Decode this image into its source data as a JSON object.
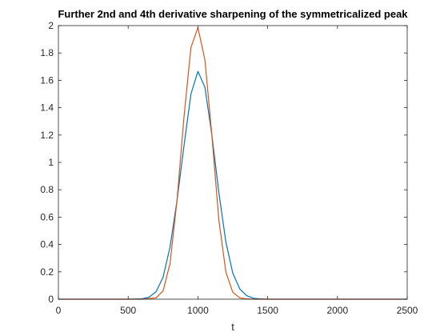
{
  "chart_data": {
    "type": "line",
    "title": "Further 2nd and 4th derivative sharpening of the symmetricalized peak",
    "xlabel": "t",
    "ylabel": "",
    "xlim": [
      0,
      2500
    ],
    "ylim": [
      0,
      2
    ],
    "xticks": [
      0,
      500,
      1000,
      1500,
      2000,
      2500
    ],
    "yticks": [
      0,
      0.2,
      0.4,
      0.6,
      0.8,
      1,
      1.2,
      1.4,
      1.6,
      1.8,
      2
    ],
    "xtick_labels": [
      "0",
      "500",
      "1000",
      "1500",
      "2000",
      "2500"
    ],
    "ytick_labels": [
      "0",
      "0.2",
      "0.4",
      "0.6",
      "0.8",
      "1",
      "1.2",
      "1.4",
      "1.6",
      "1.8",
      "2"
    ],
    "grid": false,
    "series": [
      {
        "color": "#0072BD",
        "x": [
          0,
          500,
          600,
          650,
          700,
          750,
          800,
          850,
          900,
          950,
          1000,
          1050,
          1100,
          1150,
          1200,
          1250,
          1300,
          1350,
          1400,
          1450,
          1500,
          2000,
          2500
        ],
        "y": [
          0,
          0,
          0.003,
          0.015,
          0.055,
          0.16,
          0.38,
          0.72,
          1.12,
          1.5,
          1.665,
          1.55,
          1.2,
          0.78,
          0.42,
          0.19,
          0.075,
          0.025,
          0.007,
          0.002,
          0,
          0,
          0
        ]
      },
      {
        "color": "#D95319",
        "x": [
          0,
          600,
          700,
          750,
          800,
          850,
          900,
          950,
          1000,
          1050,
          1100,
          1150,
          1200,
          1250,
          1300,
          1350,
          1400,
          1500,
          2000,
          2500
        ],
        "y": [
          0,
          0,
          0.01,
          0.06,
          0.26,
          0.72,
          1.33,
          1.84,
          1.985,
          1.75,
          1.2,
          0.58,
          0.2,
          0.05,
          0.01,
          0.002,
          0,
          0,
          0,
          0
        ]
      }
    ]
  }
}
